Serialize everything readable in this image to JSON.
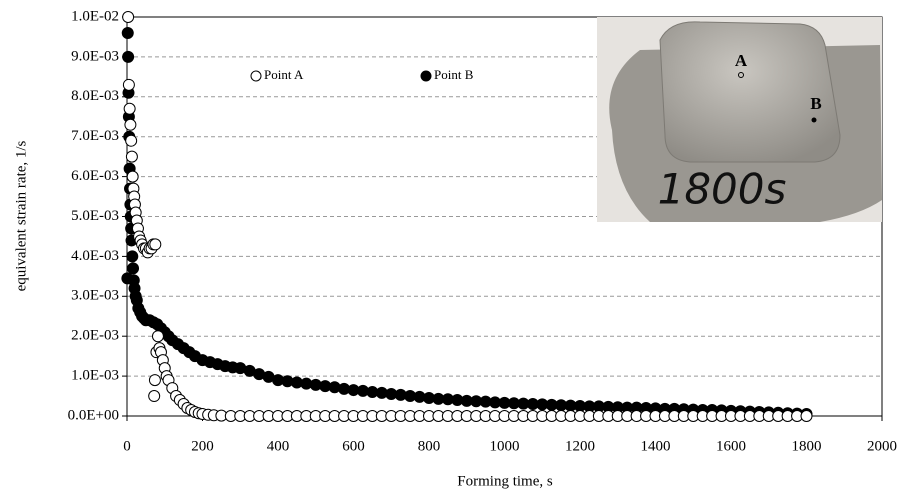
{
  "chart_data": {
    "type": "scatter",
    "xlabel": "Forming time, s",
    "ylabel": "equivalent strain rate, 1/s",
    "xlim": [
      0,
      2000
    ],
    "xticks": [
      0,
      200,
      400,
      600,
      800,
      1000,
      1200,
      1400,
      1600,
      1800,
      2000
    ],
    "ylim": [
      0,
      0.01
    ],
    "yticks": [
      {
        "value": 0,
        "label": "0.0E+00"
      },
      {
        "value": 0.001,
        "label": "1.0E-03"
      },
      {
        "value": 0.002,
        "label": "2.0E-03"
      },
      {
        "value": 0.003,
        "label": "3.0E-03"
      },
      {
        "value": 0.004,
        "label": "4.0E-03"
      },
      {
        "value": 0.005,
        "label": "5.0E-03"
      },
      {
        "value": 0.006,
        "label": "6.0E-03"
      },
      {
        "value": 0.007,
        "label": "7.0E-03"
      },
      {
        "value": 0.008,
        "label": "8.0E-03"
      },
      {
        "value": 0.009,
        "label": "9.0E-03"
      },
      {
        "value": 0.01,
        "label": "1.0E-02"
      }
    ],
    "grid": true,
    "annotations": [
      "A",
      "B",
      "1800s"
    ],
    "series": [
      {
        "name": "Point A",
        "color": "#000000",
        "marker": "open",
        "x": [
          3,
          5,
          7,
          9,
          11,
          13,
          15,
          17,
          19,
          21,
          23,
          26,
          29,
          32,
          36,
          40,
          45,
          50,
          55,
          60,
          65,
          70,
          75,
          72,
          74,
          78,
          82,
          86,
          90,
          95,
          100,
          105,
          110,
          120,
          130,
          140,
          150,
          160,
          170,
          180,
          190,
          200,
          215,
          230,
          250,
          275,
          300,
          325,
          350,
          375,
          400,
          425,
          450,
          475,
          500,
          525,
          550,
          575,
          600,
          625,
          650,
          675,
          700,
          725,
          750,
          775,
          800,
          825,
          850,
          875,
          900,
          925,
          950,
          975,
          1000,
          1025,
          1050,
          1075,
          1100,
          1125,
          1150,
          1175,
          1200,
          1225,
          1250,
          1275,
          1300,
          1325,
          1350,
          1375,
          1400,
          1425,
          1450,
          1475,
          1500,
          1525,
          1550,
          1575,
          1600,
          1625,
          1650,
          1675,
          1700,
          1725,
          1750,
          1775,
          1800
        ],
        "values": [
          0.01,
          0.0083,
          0.0077,
          0.0073,
          0.0069,
          0.0065,
          0.006,
          0.0057,
          0.0055,
          0.0053,
          0.0051,
          0.0049,
          0.0047,
          0.0045,
          0.0044,
          0.0043,
          0.0042,
          0.0042,
          0.0041,
          0.0042,
          0.0042,
          0.0043,
          0.0043,
          0.0005,
          0.0009,
          0.0016,
          0.002,
          0.0017,
          0.0016,
          0.0014,
          0.0012,
          0.001,
          0.0009,
          0.0007,
          0.0005,
          0.0004,
          0.0003,
          0.0002,
          0.00015,
          0.0001,
          7e-05,
          5e-05,
          3e-05,
          2e-05,
          1e-05,
          0,
          0,
          0,
          0,
          0,
          0,
          0,
          0,
          0,
          0,
          0,
          0,
          0,
          0,
          0,
          0,
          0,
          0,
          0,
          0,
          0,
          0,
          0,
          0,
          0,
          0,
          0,
          0,
          0,
          0,
          0,
          0,
          0,
          0,
          0,
          0,
          0,
          0,
          0,
          0,
          0,
          0,
          0,
          0,
          0,
          0,
          0,
          0,
          0,
          0,
          0,
          0,
          0,
          0,
          0,
          0,
          0,
          0,
          0,
          0,
          0,
          0
        ]
      },
      {
        "name": "Point B",
        "color": "#000000",
        "marker": "filled",
        "x": [
          1,
          2,
          3,
          4,
          5,
          6,
          7,
          8,
          9,
          10,
          11,
          12,
          14,
          16,
          18,
          20,
          23,
          26,
          30,
          35,
          40,
          45,
          50,
          60,
          70,
          80,
          90,
          100,
          110,
          120,
          135,
          150,
          165,
          180,
          200,
          220,
          240,
          260,
          280,
          300,
          325,
          350,
          375,
          400,
          425,
          450,
          475,
          500,
          525,
          550,
          575,
          600,
          625,
          650,
          675,
          700,
          725,
          750,
          775,
          800,
          825,
          850,
          875,
          900,
          925,
          950,
          975,
          1000,
          1025,
          1050,
          1075,
          1100,
          1125,
          1150,
          1175,
          1200,
          1225,
          1250,
          1275,
          1300,
          1325,
          1350,
          1375,
          1400,
          1425,
          1450,
          1475,
          1500,
          1525,
          1550,
          1575,
          1600,
          1625,
          1650,
          1675,
          1700,
          1725,
          1750,
          1775,
          1800
        ],
        "values": [
          0.00345,
          0.0096,
          0.009,
          0.0081,
          0.0075,
          0.007,
          0.0062,
          0.0057,
          0.0053,
          0.005,
          0.0047,
          0.0044,
          0.004,
          0.0037,
          0.0034,
          0.0032,
          0.003,
          0.0029,
          0.0027,
          0.0026,
          0.0025,
          0.00245,
          0.0024,
          0.0024,
          0.00235,
          0.0023,
          0.0022,
          0.0021,
          0.002,
          0.0019,
          0.0018,
          0.0017,
          0.0016,
          0.0015,
          0.0014,
          0.00135,
          0.0013,
          0.00125,
          0.00122,
          0.0012,
          0.00113,
          0.00105,
          0.00098,
          0.0009,
          0.00087,
          0.00084,
          0.00081,
          0.00078,
          0.00075,
          0.00072,
          0.00068,
          0.00065,
          0.00063,
          0.0006,
          0.00058,
          0.00055,
          0.00053,
          0.0005,
          0.00048,
          0.00045,
          0.00043,
          0.00042,
          0.0004,
          0.00038,
          0.00037,
          0.00036,
          0.00034,
          0.00033,
          0.00032,
          0.00031,
          0.0003,
          0.00029,
          0.00028,
          0.00027,
          0.00026,
          0.00025,
          0.00024,
          0.00024,
          0.00023,
          0.00022,
          0.00021,
          0.00021,
          0.0002,
          0.00019,
          0.00018,
          0.00018,
          0.00017,
          0.00016,
          0.00015,
          0.00015,
          0.00014,
          0.00013,
          0.00012,
          0.00011,
          0.0001,
          9e-05,
          8e-05,
          7e-05,
          6e-05,
          5e-05
        ]
      }
    ]
  }
}
